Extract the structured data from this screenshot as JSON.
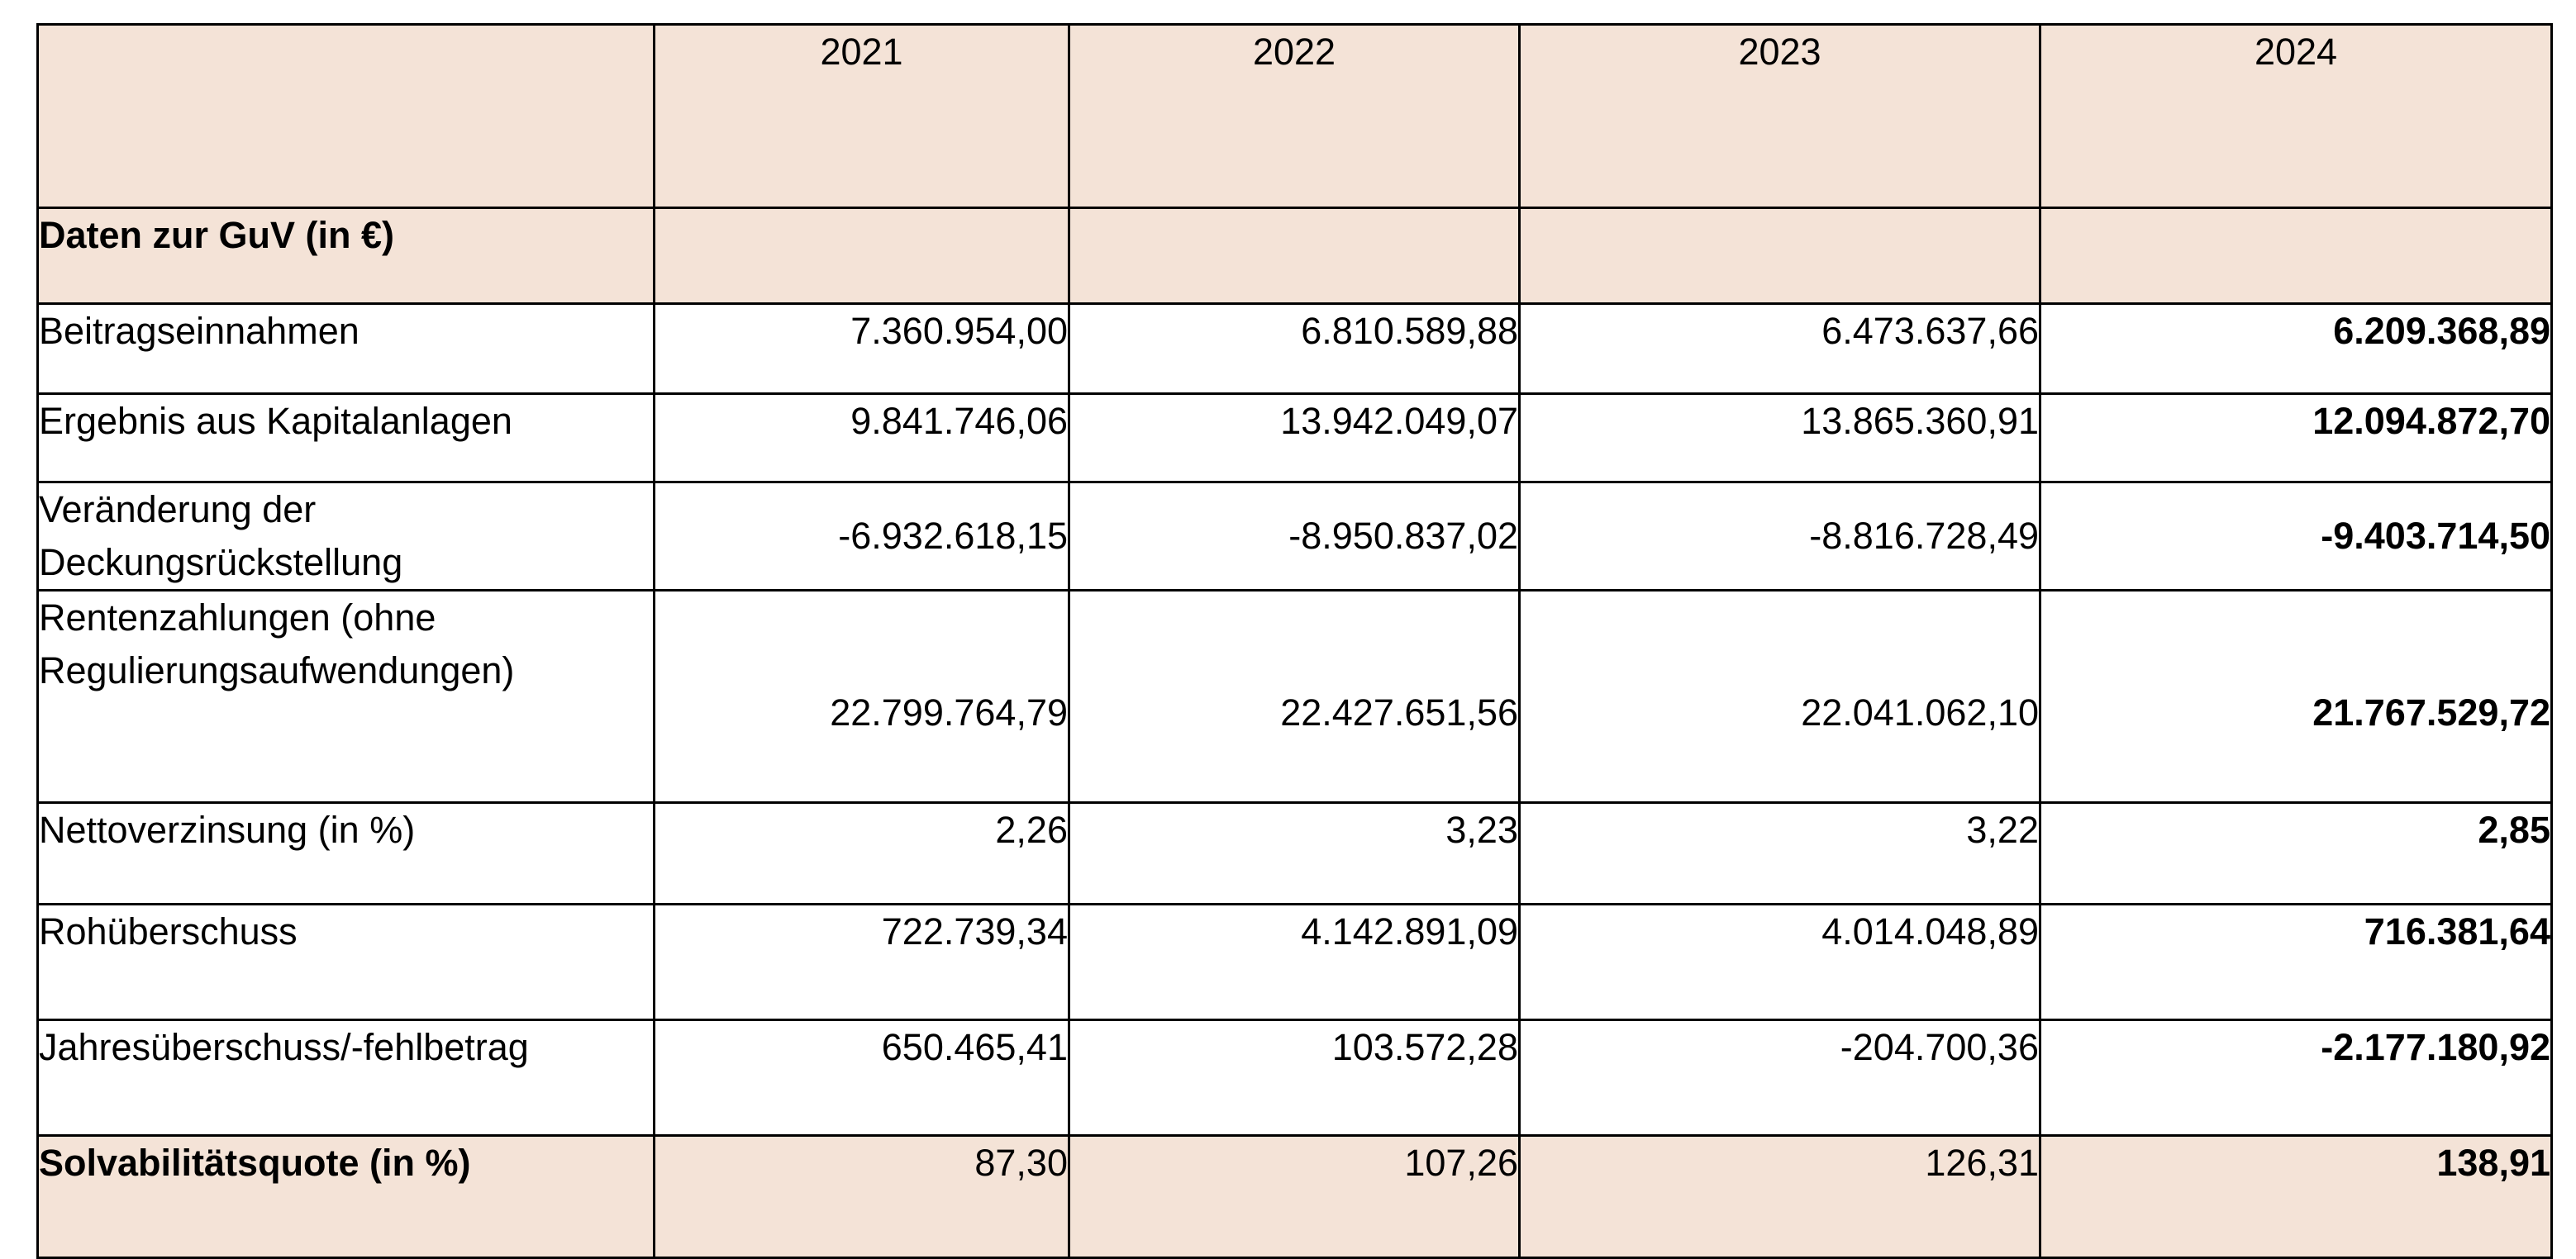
{
  "table": {
    "header": {
      "corner": "",
      "years": [
        "2021",
        "2022",
        "2023",
        "2024"
      ]
    },
    "section_label": "Daten zur GuV (in €)",
    "rows": [
      {
        "label": "Beitragseinnahmen",
        "values": [
          "7.360.954,00",
          "6.810.589,88",
          "6.473.637,66",
          "6.209.368,89"
        ]
      },
      {
        "label": "Ergebnis aus Kapitalanlagen",
        "values": [
          "9.841.746,06",
          "13.942.049,07",
          "13.865.360,91",
          "12.094.872,70"
        ]
      },
      {
        "label": "Veränderung der Deckungsrückstellung",
        "values": [
          "-6.932.618,15",
          "-8.950.837,02",
          "-8.816.728,49",
          "-9.403.714,50"
        ]
      },
      {
        "label": "Rentenzahlungen (ohne Regulierungsaufwendungen)",
        "values": [
          "22.799.764,79",
          "22.427.651,56",
          "22.041.062,10",
          "21.767.529,72"
        ]
      },
      {
        "label": "Nettoverzinsung (in %)",
        "values": [
          "2,26",
          "3,23",
          "3,22",
          "2,85"
        ]
      },
      {
        "label": "Rohüberschuss",
        "values": [
          "722.739,34",
          "4.142.891,09",
          "4.014.048,89",
          "716.381,64"
        ]
      },
      {
        "label": "Jahresüberschuss/-fehlbetrag",
        "values": [
          "650.465,41",
          "103.572,28",
          "-204.700,36",
          "-2.177.180,92"
        ]
      }
    ],
    "footer": {
      "label": "Solvabilitätsquote (in %)",
      "values": [
        "87,30",
        "107,26",
        "126,31",
        "138,91"
      ]
    },
    "colors": {
      "shaded_background": "#f4e3d7",
      "border": "#000000"
    }
  }
}
